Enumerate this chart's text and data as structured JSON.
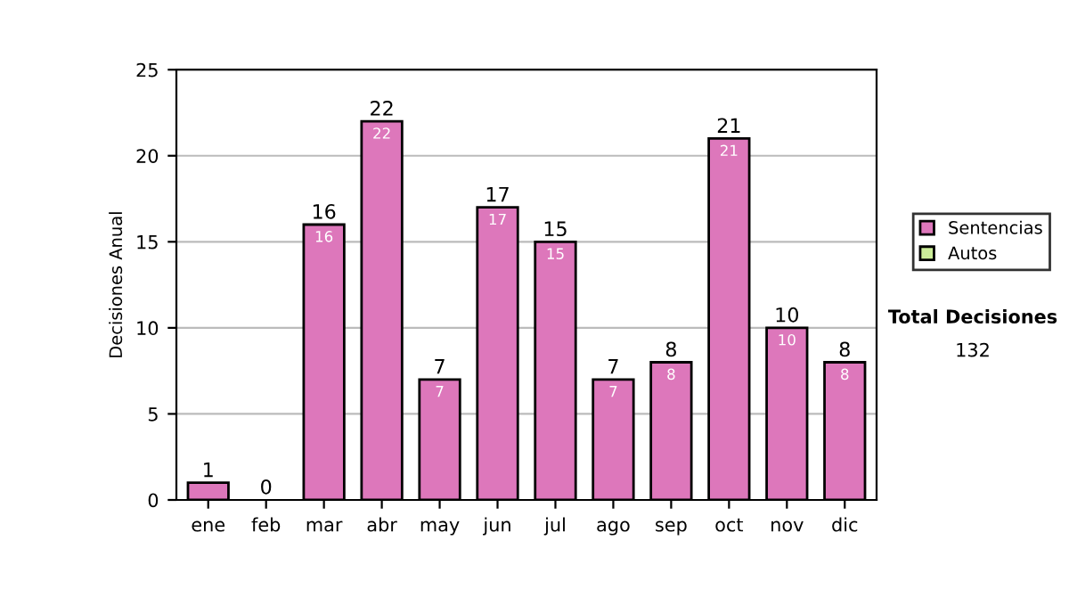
{
  "chart_data": {
    "type": "bar",
    "stacked": true,
    "ylabel": "Decisiones Anual",
    "categories": [
      "ene",
      "feb",
      "mar",
      "abr",
      "may",
      "jun",
      "jul",
      "ago",
      "sep",
      "oct",
      "nov",
      "dic"
    ],
    "series": [
      {
        "name": "Sentencias",
        "color": "#dd77bb",
        "values": [
          1,
          0,
          16,
          22,
          7,
          17,
          15,
          7,
          8,
          21,
          10,
          8
        ],
        "value_labels": [
          null,
          null,
          "16",
          "22",
          "7",
          "17",
          "15",
          "7",
          "8",
          "21",
          "10",
          "8"
        ]
      },
      {
        "name": "Autos",
        "color": "#ccee99",
        "values": [
          0,
          0,
          0,
          0,
          0,
          0,
          0,
          0,
          0,
          0,
          0,
          0
        ]
      }
    ],
    "totals": [
      "1",
      "0",
      "16",
      "22",
      "7",
      "17",
      "15",
      "7",
      "8",
      "21",
      "10",
      "8"
    ],
    "ylim": [
      0,
      25
    ],
    "yticks": [
      0,
      5,
      10,
      15,
      20,
      25
    ],
    "grid": "y",
    "legend": "right",
    "annotations": [
      "Total Decisiones",
      "132"
    ]
  }
}
